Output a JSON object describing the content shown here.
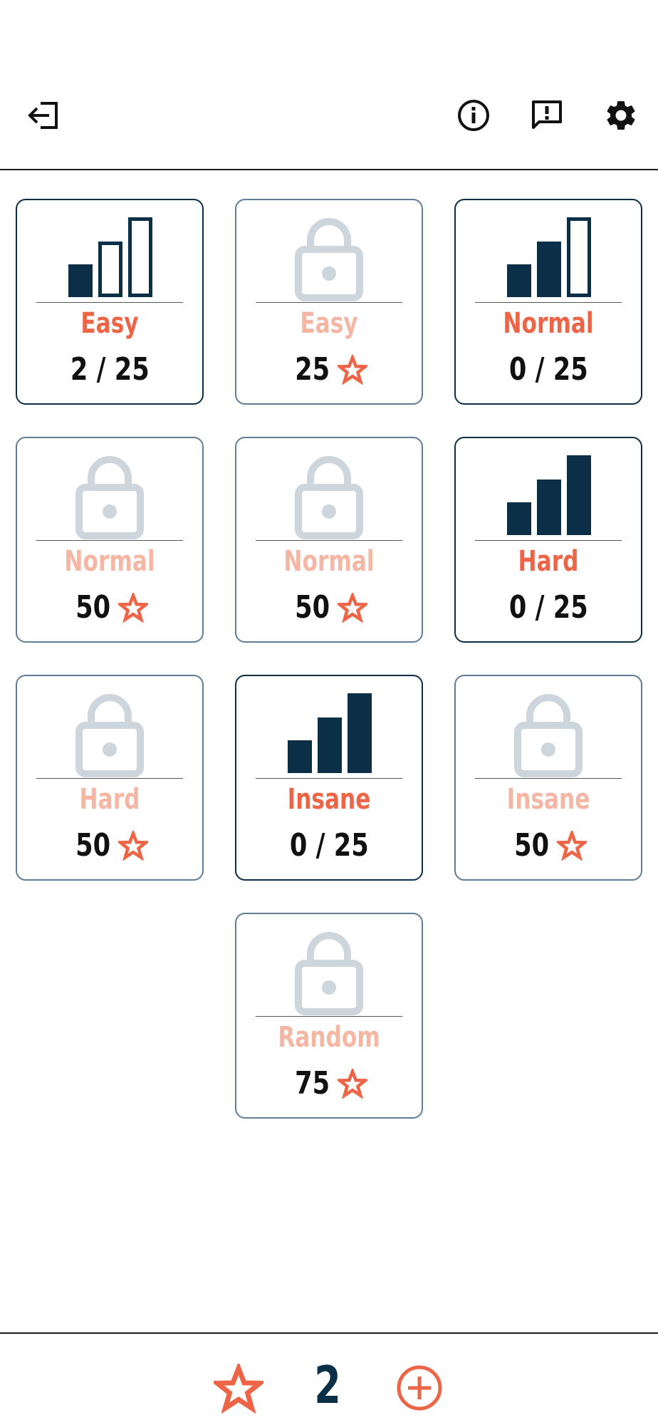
{
  "header": {
    "exit_icon": "exit-icon",
    "info_icon": "info-icon",
    "feedback_icon": "feedback-icon",
    "settings_icon": "gear-icon"
  },
  "levels": [
    {
      "title": "Easy",
      "locked": false,
      "bars": 1,
      "progress": "2 / 25"
    },
    {
      "title": "Easy",
      "locked": true,
      "cost": "25"
    },
    {
      "title": "Normal",
      "locked": false,
      "bars": 2,
      "progress": "0 / 25"
    },
    {
      "title": "Normal",
      "locked": true,
      "cost": "50"
    },
    {
      "title": "Normal",
      "locked": true,
      "cost": "50"
    },
    {
      "title": "Hard",
      "locked": false,
      "bars": 3,
      "progress": "0 / 25"
    },
    {
      "title": "Hard",
      "locked": true,
      "cost": "50"
    },
    {
      "title": "Insane",
      "locked": false,
      "bars": 3,
      "progress": "0 / 25"
    },
    {
      "title": "Insane",
      "locked": true,
      "cost": "50"
    },
    {
      "title": "Random",
      "locked": true,
      "cost": "75"
    }
  ],
  "footer": {
    "stars": "2",
    "star_icon": "star-icon",
    "add_icon": "plus-circle-icon"
  },
  "colors": {
    "navy": "#0b2f47",
    "accent": "#ee6446",
    "accent_faded": "#f6b6a4",
    "lock_gray": "#cdd6dc",
    "locked_border": "#5f7e95"
  }
}
